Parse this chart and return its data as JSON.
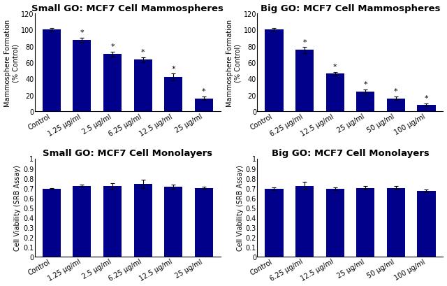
{
  "bar_color": "#00008B",
  "background_color": "#ffffff",
  "title_fontsize": 9.5,
  "axis_label_fontsize": 7,
  "tick_fontsize": 7,
  "top_left": {
    "title": "Small GO: MCF7 Cell Mammospheres",
    "ylabel": "Mammosphere Formation\n(% Control)",
    "categories": [
      "Control",
      "1.25 μg/ml",
      "2.5 μg/ml",
      "6.25 μg/ml",
      "12.5 μg/ml",
      "25 μg/ml"
    ],
    "values": [
      100,
      87,
      70,
      63,
      42,
      16
    ],
    "errors": [
      2,
      3,
      3,
      3,
      4,
      2
    ],
    "star": [
      false,
      true,
      true,
      true,
      true,
      true
    ],
    "ylim": [
      0,
      120
    ],
    "yticks": [
      0,
      20,
      40,
      60,
      80,
      100,
      120
    ]
  },
  "top_right": {
    "title": "Big GO: MCF7 Cell Mammospheres",
    "ylabel": "Mammosphere Formation\n(% Control)",
    "categories": [
      "Control",
      "6.25 μg/ml",
      "12.5 μg/ml",
      "25 μg/ml",
      "50 μg/ml",
      "100 μg/ml"
    ],
    "values": [
      100,
      75,
      46,
      24,
      16,
      8
    ],
    "errors": [
      1.5,
      3.5,
      2,
      2.5,
      2,
      1.5
    ],
    "star": [
      false,
      true,
      true,
      true,
      true,
      true
    ],
    "ylim": [
      0,
      120
    ],
    "yticks": [
      0,
      20,
      40,
      60,
      80,
      100,
      120
    ]
  },
  "bot_left": {
    "title": "Small GO: MCF7 Cell Monolayers",
    "ylabel": "Cell Viability (SRB Assay)",
    "categories": [
      "Control",
      "1.25 μg/ml",
      "2.5 μg/ml",
      "6.25 μg/ml",
      "12.5 μg/ml",
      "25 μg/ml"
    ],
    "values": [
      0.69,
      0.72,
      0.72,
      0.74,
      0.71,
      0.7
    ],
    "errors": [
      0.01,
      0.01,
      0.03,
      0.04,
      0.02,
      0.01
    ],
    "star": [
      false,
      false,
      false,
      false,
      false,
      false
    ],
    "ylim": [
      0,
      1.0
    ],
    "yticks": [
      0,
      0.1,
      0.2,
      0.3,
      0.4,
      0.5,
      0.6,
      0.7,
      0.8,
      0.9,
      1
    ]
  },
  "bot_right": {
    "title": "Big GO: MCF7 Cell Monolayers",
    "ylabel": "Cell Viability (SRB Assay)",
    "categories": [
      "Control",
      "6.25 μg/ml",
      "12.5 μg/ml",
      "25 μg/ml",
      "50 μg/ml",
      "100 μg/ml"
    ],
    "values": [
      0.69,
      0.72,
      0.69,
      0.7,
      0.7,
      0.67
    ],
    "errors": [
      0.015,
      0.04,
      0.015,
      0.02,
      0.02,
      0.015
    ],
    "star": [
      false,
      false,
      false,
      false,
      false,
      false
    ],
    "ylim": [
      0,
      1.0
    ],
    "yticks": [
      0,
      0.1,
      0.2,
      0.3,
      0.4,
      0.5,
      0.6,
      0.7,
      0.8,
      0.9,
      1
    ]
  }
}
